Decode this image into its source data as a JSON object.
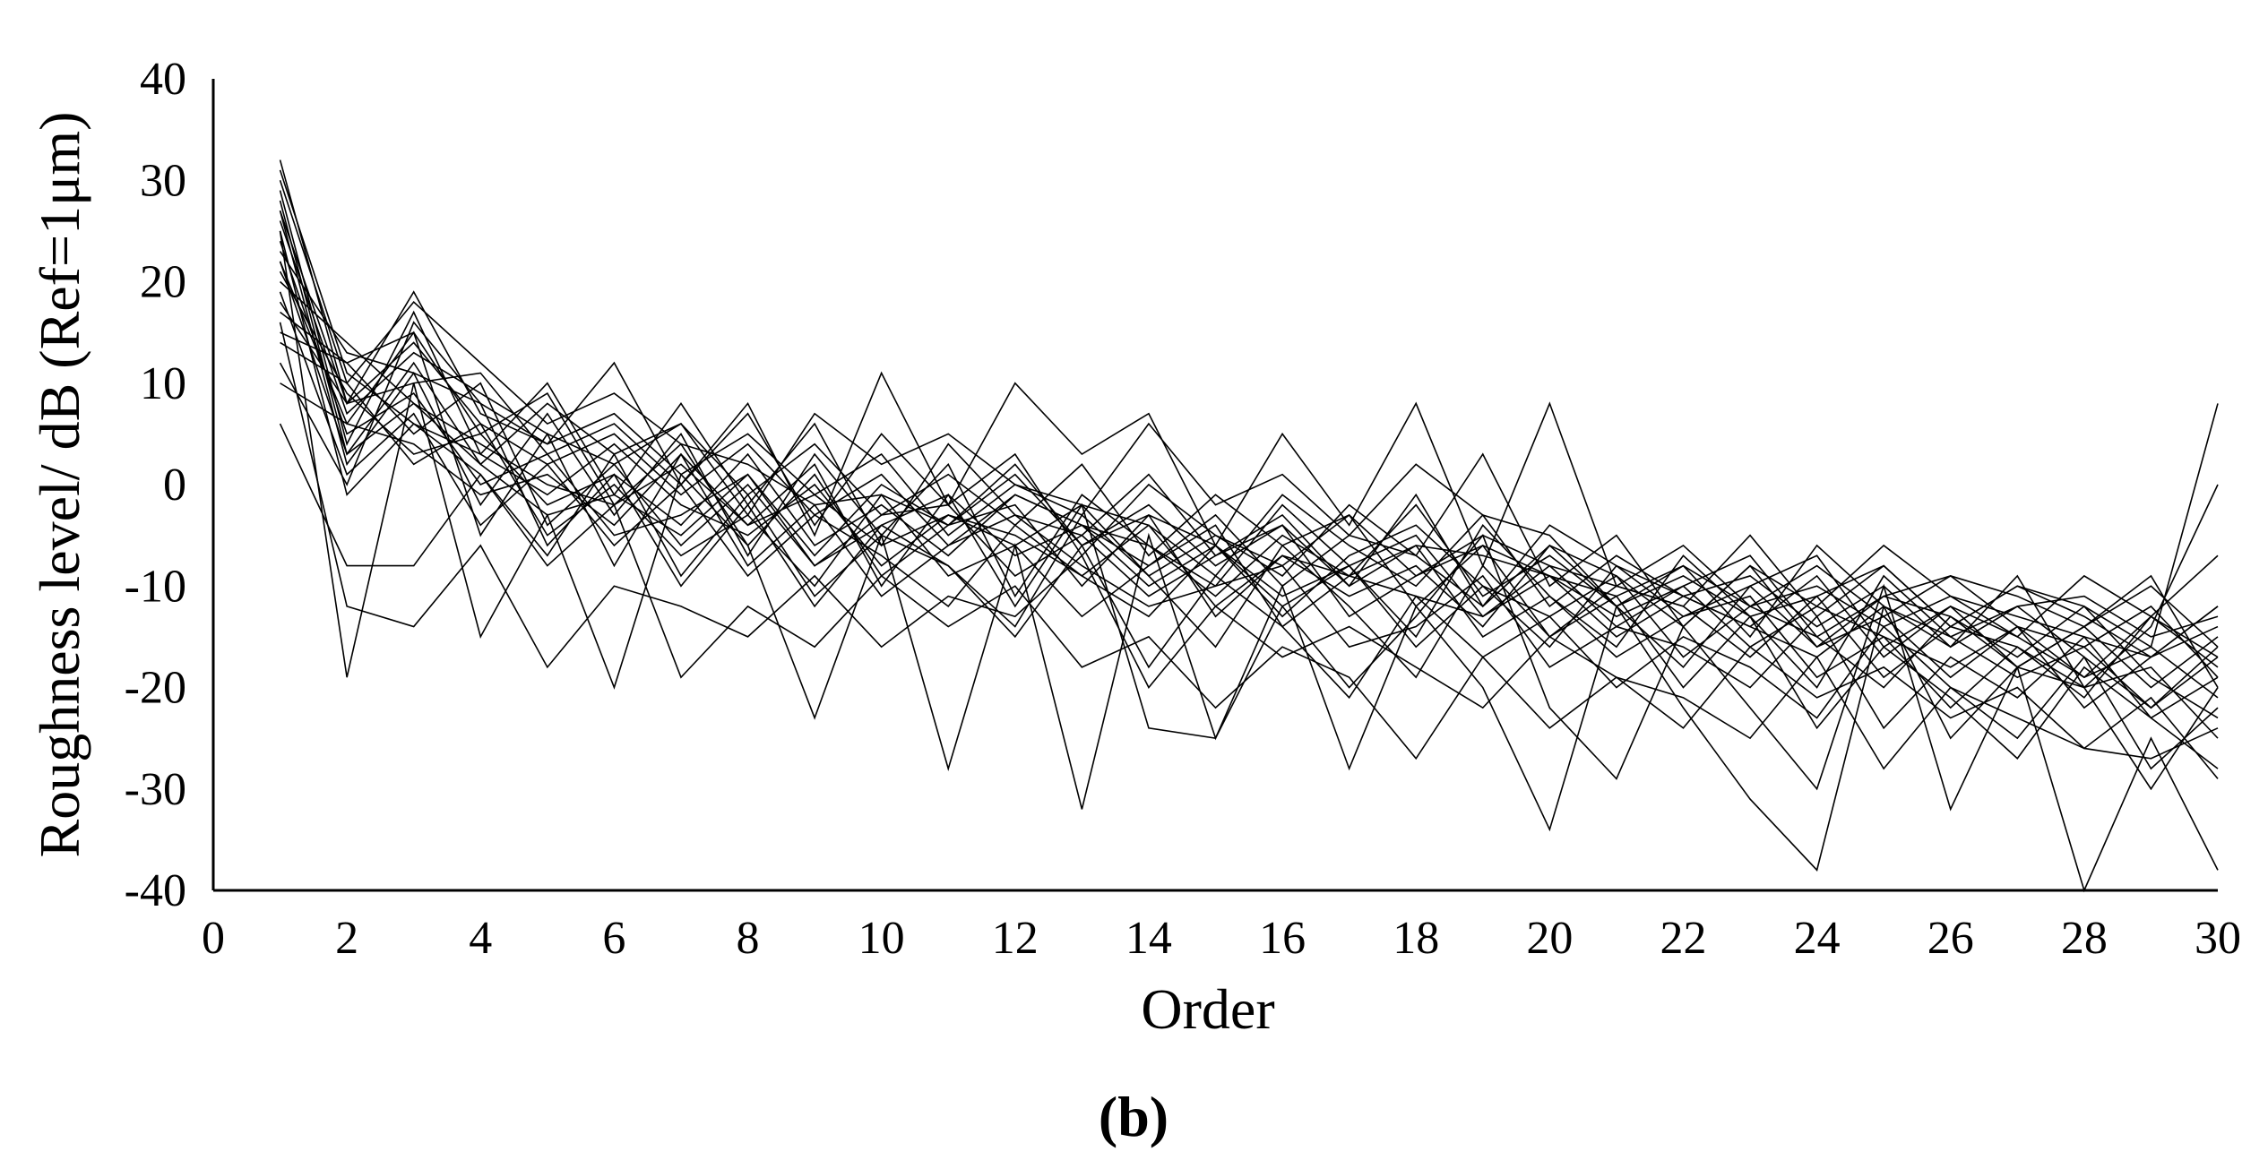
{
  "chart_data": {
    "type": "line",
    "title": "",
    "xlabel": "Order",
    "ylabel": "Roughness level/ dB (Ref=1μm)",
    "panel_label": "(b)",
    "xlim": [
      0,
      30
    ],
    "ylim": [
      -40,
      40
    ],
    "xticks": [
      "0",
      "2",
      "4",
      "6",
      "8",
      "10",
      "12",
      "14",
      "16",
      "18",
      "20",
      "22",
      "24",
      "26",
      "28",
      "30"
    ],
    "yticks": [
      "40",
      "30",
      "20",
      "10",
      "0",
      "-10",
      "-20",
      "-30",
      "-40"
    ],
    "grid": false,
    "legend": "none",
    "line_color": "#000000",
    "x": [
      1,
      2,
      3,
      4,
      5,
      6,
      7,
      8,
      9,
      10,
      11,
      12,
      13,
      14,
      15,
      16,
      17,
      18,
      19,
      20,
      21,
      22,
      23,
      24,
      25,
      26,
      27,
      28,
      29,
      30
    ],
    "series": [
      {
        "values": [
          32,
          8,
          19,
          7,
          4,
          12,
          0,
          8,
          -5,
          11,
          -2,
          10,
          3,
          7,
          -6,
          5,
          -4,
          8,
          -8,
          8,
          -10,
          -12,
          -5,
          -13,
          -8,
          -14,
          -10,
          -12,
          -16,
          8
        ]
      },
      {
        "values": [
          28,
          3,
          12,
          2,
          8,
          3,
          6,
          -3,
          7,
          2,
          5,
          0,
          -3,
          6,
          -2,
          1,
          -5,
          2,
          -3,
          -5,
          -12,
          -8,
          -15,
          -6,
          -12,
          -16,
          -9,
          -20,
          -14,
          0
        ]
      },
      {
        "values": [
          25,
          -19,
          10,
          -15,
          -3,
          -20,
          1,
          -6,
          -23,
          -5,
          -28,
          -6,
          -32,
          -5,
          -25,
          -10,
          -28,
          -12,
          -20,
          -34,
          -12,
          -22,
          -31,
          -38,
          -12,
          -25,
          -18,
          -40,
          -25,
          -38
        ]
      },
      {
        "values": [
          22,
          6,
          15,
          -5,
          5,
          -8,
          3,
          -4,
          2,
          -10,
          -1,
          -12,
          -2,
          -24,
          -25,
          -12,
          -20,
          -13,
          -5,
          -22,
          -29,
          -14,
          -22,
          -30,
          -10,
          -32,
          -18,
          -20,
          -30,
          -20
        ]
      },
      {
        "values": [
          30,
          10,
          18,
          12,
          6,
          9,
          4,
          2,
          -2,
          -1,
          -4,
          1,
          -6,
          -2,
          -8,
          -4,
          -10,
          -6,
          -7,
          -9,
          -11,
          -8,
          -12,
          -10,
          -14,
          -11,
          -13,
          -15,
          -17,
          -12
        ]
      },
      {
        "values": [
          18,
          8,
          14,
          6,
          2,
          5,
          -1,
          4,
          -3,
          1,
          -6,
          -1,
          -4,
          -8,
          -3,
          -10,
          -5,
          -7,
          -12,
          -6,
          -9,
          -14,
          -8,
          -16,
          -11,
          -13,
          -18,
          -14,
          -20,
          -15
        ]
      },
      {
        "values": [
          15,
          12,
          5,
          10,
          -4,
          2,
          -6,
          0,
          -8,
          -3,
          -2,
          -9,
          -5,
          -11,
          -7,
          -4,
          -13,
          -9,
          -6,
          -15,
          -10,
          -12,
          -17,
          -11,
          -19,
          -14,
          -16,
          -21,
          -13,
          -18
        ]
      },
      {
        "values": [
          27,
          2,
          11,
          -2,
          7,
          -3,
          5,
          -7,
          3,
          -5,
          2,
          -11,
          -1,
          -6,
          -10,
          -2,
          -8,
          -15,
          -4,
          -11,
          -16,
          -7,
          -13,
          -20,
          -9,
          -15,
          -12,
          -17,
          -22,
          -16
        ]
      },
      {
        "values": [
          20,
          14,
          8,
          4,
          0,
          -2,
          2,
          -4,
          -1,
          -6,
          -3,
          -5,
          -9,
          -4,
          -12,
          -7,
          -9,
          -11,
          -13,
          -8,
          -14,
          -10,
          -16,
          -12,
          -15,
          -18,
          -14,
          -19,
          -16,
          -21
        ]
      },
      {
        "values": [
          12,
          0,
          16,
          8,
          -6,
          1,
          -10,
          -2,
          -12,
          -4,
          -8,
          -15,
          -6,
          -18,
          -9,
          -14,
          -21,
          -11,
          -17,
          -13,
          -20,
          -15,
          -18,
          -23,
          -14,
          -20,
          -25,
          -17,
          -28,
          -22
        ]
      },
      {
        "values": [
          24,
          5,
          9,
          0,
          3,
          -5,
          -3,
          1,
          -7,
          0,
          -4,
          -2,
          -10,
          -3,
          -6,
          -13,
          -7,
          -4,
          -10,
          -16,
          -8,
          -11,
          -14,
          -9,
          -17,
          -12,
          -15,
          -19,
          -13,
          -17
        ]
      },
      {
        "values": [
          31,
          11,
          6,
          3,
          -1,
          4,
          -2,
          -5,
          0,
          -8,
          -3,
          -6,
          -2,
          -9,
          -5,
          -8,
          -3,
          -12,
          -6,
          -9,
          -13,
          -10,
          -7,
          -15,
          -11,
          -9,
          -14,
          -16,
          -12,
          -19
        ]
      },
      {
        "values": [
          6,
          -8,
          -8,
          1,
          -8,
          -2,
          -19,
          -12,
          -16,
          -9,
          -14,
          -10,
          -18,
          -15,
          -22,
          -16,
          -19,
          -27,
          -17,
          -24,
          -19,
          -21,
          -25,
          -17,
          -28,
          -20,
          -23,
          -26,
          -21,
          -29
        ]
      },
      {
        "values": [
          16,
          -12,
          -14,
          -6,
          -18,
          -10,
          -12,
          -15,
          -9,
          -16,
          -11,
          -13,
          -7,
          -20,
          -12,
          -17,
          -14,
          -18,
          -22,
          -15,
          -19,
          -24,
          -16,
          -21,
          -18,
          -23,
          -20,
          -26,
          -27,
          -24
        ]
      },
      {
        "values": [
          21,
          9,
          3,
          5,
          -2,
          1,
          -4,
          3,
          -6,
          -2,
          -7,
          -1,
          -4,
          -6,
          -11,
          -5,
          -9,
          -2,
          -11,
          -7,
          -12,
          -9,
          -13,
          -11,
          -8,
          -14,
          -10,
          -13,
          -17,
          -14
        ]
      },
      {
        "values": [
          26,
          7,
          13,
          9,
          5,
          2,
          6,
          -1,
          4,
          -3,
          1,
          -4,
          2,
          -7,
          -1,
          -6,
          -3,
          -9,
          -5,
          -8,
          -10,
          -6,
          -12,
          -8,
          -13,
          -9,
          -11,
          -14,
          -10,
          -16
        ]
      },
      {
        "values": [
          19,
          1,
          7,
          -4,
          2,
          -6,
          0,
          -9,
          -3,
          -7,
          -12,
          -4,
          -9,
          -13,
          -6,
          -11,
          -8,
          -16,
          -10,
          -13,
          -9,
          -17,
          -12,
          -15,
          -20,
          -13,
          -17,
          -12,
          -19,
          -23
        ]
      },
      {
        "values": [
          23,
          13,
          11,
          8,
          4,
          7,
          1,
          5,
          -1,
          3,
          -5,
          0,
          -2,
          -4,
          -9,
          -1,
          -6,
          -10,
          -3,
          -12,
          -7,
          -11,
          -9,
          -14,
          -10,
          -16,
          -12,
          -11,
          -15,
          -13
        ]
      },
      {
        "values": [
          29,
          4,
          17,
          3,
          10,
          -1,
          8,
          -2,
          6,
          -6,
          4,
          -3,
          -5,
          1,
          -7,
          -3,
          -10,
          -1,
          -12,
          -4,
          -8,
          -13,
          -10,
          -7,
          -16,
          -12,
          -18,
          -14,
          -9,
          -20
        ]
      },
      {
        "values": [
          14,
          10,
          2,
          6,
          -5,
          0,
          -7,
          -3,
          -10,
          -1,
          -9,
          -6,
          -13,
          -8,
          -4,
          -14,
          -9,
          -6,
          -15,
          -11,
          -17,
          -13,
          -11,
          -19,
          -15,
          -22,
          -16,
          -20,
          -18,
          -25
        ]
      },
      {
        "values": [
          10,
          6,
          4,
          -1,
          1,
          -4,
          3,
          -8,
          -2,
          -11,
          -6,
          -3,
          -8,
          -12,
          -10,
          -8,
          -16,
          -14,
          -9,
          -18,
          -14,
          -16,
          -20,
          -13,
          -24,
          -17,
          -21,
          -15,
          -23,
          -19
        ]
      },
      {
        "values": [
          27,
          8,
          10,
          11,
          3,
          6,
          0,
          7,
          -4,
          5,
          -2,
          3,
          -7,
          0,
          -5,
          -9,
          -2,
          -7,
          3,
          -10,
          -5,
          -14,
          -8,
          -12,
          -6,
          -11,
          -15,
          -9,
          -13,
          -7
        ]
      },
      {
        "values": [
          22,
          3,
          8,
          2,
          -3,
          -1,
          -5,
          1,
          -8,
          -4,
          -1,
          -7,
          -4,
          -10,
          -6,
          -12,
          -8,
          -5,
          -13,
          -9,
          -15,
          -11,
          -14,
          -17,
          -12,
          -15,
          -19,
          -16,
          -22,
          -17
        ]
      },
      {
        "values": [
          17,
          12,
          15,
          5,
          9,
          -2,
          4,
          -6,
          1,
          -9,
          -4,
          2,
          -6,
          -3,
          -13,
          -7,
          -11,
          -8,
          -14,
          -6,
          -12,
          -18,
          -10,
          -16,
          -13,
          -19,
          -14,
          -22,
          -17,
          -12
        ]
      },
      {
        "values": [
          25,
          -1,
          6,
          1,
          -7,
          3,
          -9,
          -1,
          -11,
          -5,
          -8,
          -14,
          -3,
          -9,
          -16,
          -6,
          -12,
          -19,
          -8,
          -15,
          -11,
          -20,
          -13,
          -24,
          -16,
          -21,
          -27,
          -18,
          -23,
          -28
        ]
      }
    ]
  }
}
